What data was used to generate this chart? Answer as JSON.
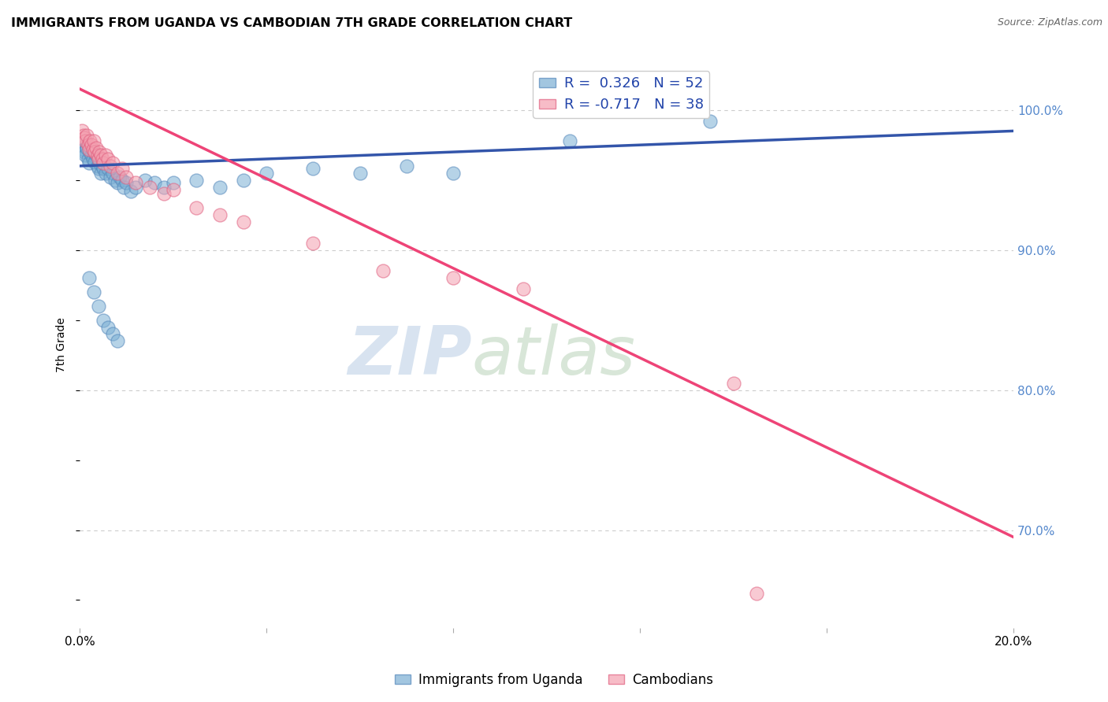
{
  "title": "IMMIGRANTS FROM UGANDA VS CAMBODIAN 7TH GRADE CORRELATION CHART",
  "source": "Source: ZipAtlas.com",
  "ylabel": "7th Grade",
  "xlim": [
    0.0,
    20.0
  ],
  "ylim": [
    63.0,
    103.5
  ],
  "y_ticks_right": [
    70.0,
    80.0,
    90.0,
    100.0
  ],
  "grid_color": "#cccccc",
  "background_color": "#ffffff",
  "watermark_zip": "ZIP",
  "watermark_atlas": "atlas",
  "uganda_color": "#7bafd4",
  "cambodian_color": "#f4a0b0",
  "uganda_edge_color": "#5588bb",
  "cambodian_edge_color": "#e06080",
  "uganda_line_color": "#3355aa",
  "cambodian_line_color": "#ee4477",
  "uganda_R": 0.326,
  "uganda_N": 52,
  "cambodian_R": -0.717,
  "cambodian_N": 38,
  "uganda_scatter_x": [
    0.05,
    0.08,
    0.1,
    0.12,
    0.15,
    0.18,
    0.2,
    0.22,
    0.25,
    0.28,
    0.3,
    0.32,
    0.35,
    0.38,
    0.4,
    0.42,
    0.45,
    0.48,
    0.5,
    0.55,
    0.6,
    0.65,
    0.7,
    0.75,
    0.8,
    0.85,
    0.9,
    0.95,
    1.0,
    1.1,
    1.2,
    1.4,
    1.6,
    1.8,
    2.0,
    2.5,
    3.0,
    3.5,
    4.0,
    5.0,
    6.0,
    7.0,
    8.0,
    0.2,
    0.3,
    0.4,
    0.5,
    0.6,
    0.7,
    0.8,
    10.5,
    13.5
  ],
  "uganda_scatter_y": [
    97.5,
    97.2,
    97.0,
    96.8,
    97.3,
    96.5,
    96.2,
    97.0,
    96.8,
    96.5,
    97.0,
    96.3,
    96.8,
    96.0,
    95.8,
    96.2,
    95.5,
    96.0,
    95.8,
    95.5,
    95.8,
    95.2,
    95.5,
    95.0,
    94.8,
    95.2,
    95.0,
    94.5,
    94.8,
    94.2,
    94.5,
    95.0,
    94.8,
    94.5,
    94.8,
    95.0,
    94.5,
    95.0,
    95.5,
    95.8,
    95.5,
    96.0,
    95.5,
    88.0,
    87.0,
    86.0,
    85.0,
    84.5,
    84.0,
    83.5,
    97.8,
    99.2
  ],
  "cambodian_scatter_x": [
    0.05,
    0.08,
    0.1,
    0.12,
    0.15,
    0.18,
    0.2,
    0.22,
    0.25,
    0.28,
    0.3,
    0.32,
    0.35,
    0.38,
    0.4,
    0.42,
    0.45,
    0.48,
    0.5,
    0.55,
    0.6,
    0.65,
    0.7,
    0.8,
    0.9,
    1.0,
    1.2,
    1.5,
    1.8,
    2.0,
    2.5,
    3.0,
    3.5,
    5.0,
    6.5,
    8.0,
    9.5,
    14.0
  ],
  "cambodian_scatter_y": [
    98.5,
    98.2,
    98.0,
    97.8,
    98.2,
    97.5,
    97.2,
    97.8,
    97.5,
    97.2,
    97.8,
    97.0,
    97.3,
    96.8,
    96.5,
    97.0,
    96.8,
    96.5,
    96.2,
    96.8,
    96.5,
    96.0,
    96.2,
    95.5,
    95.8,
    95.2,
    94.8,
    94.5,
    94.0,
    94.3,
    93.0,
    92.5,
    92.0,
    90.5,
    88.5,
    88.0,
    87.2,
    80.5
  ],
  "cambodian_outlier_x": 14.5,
  "cambodian_outlier_y": 65.5,
  "uganda_line_x": [
    0.0,
    20.0
  ],
  "uganda_line_y": [
    96.0,
    98.5
  ],
  "cambodian_line_x": [
    0.0,
    20.0
  ],
  "cambodian_line_y": [
    101.5,
    69.5
  ]
}
